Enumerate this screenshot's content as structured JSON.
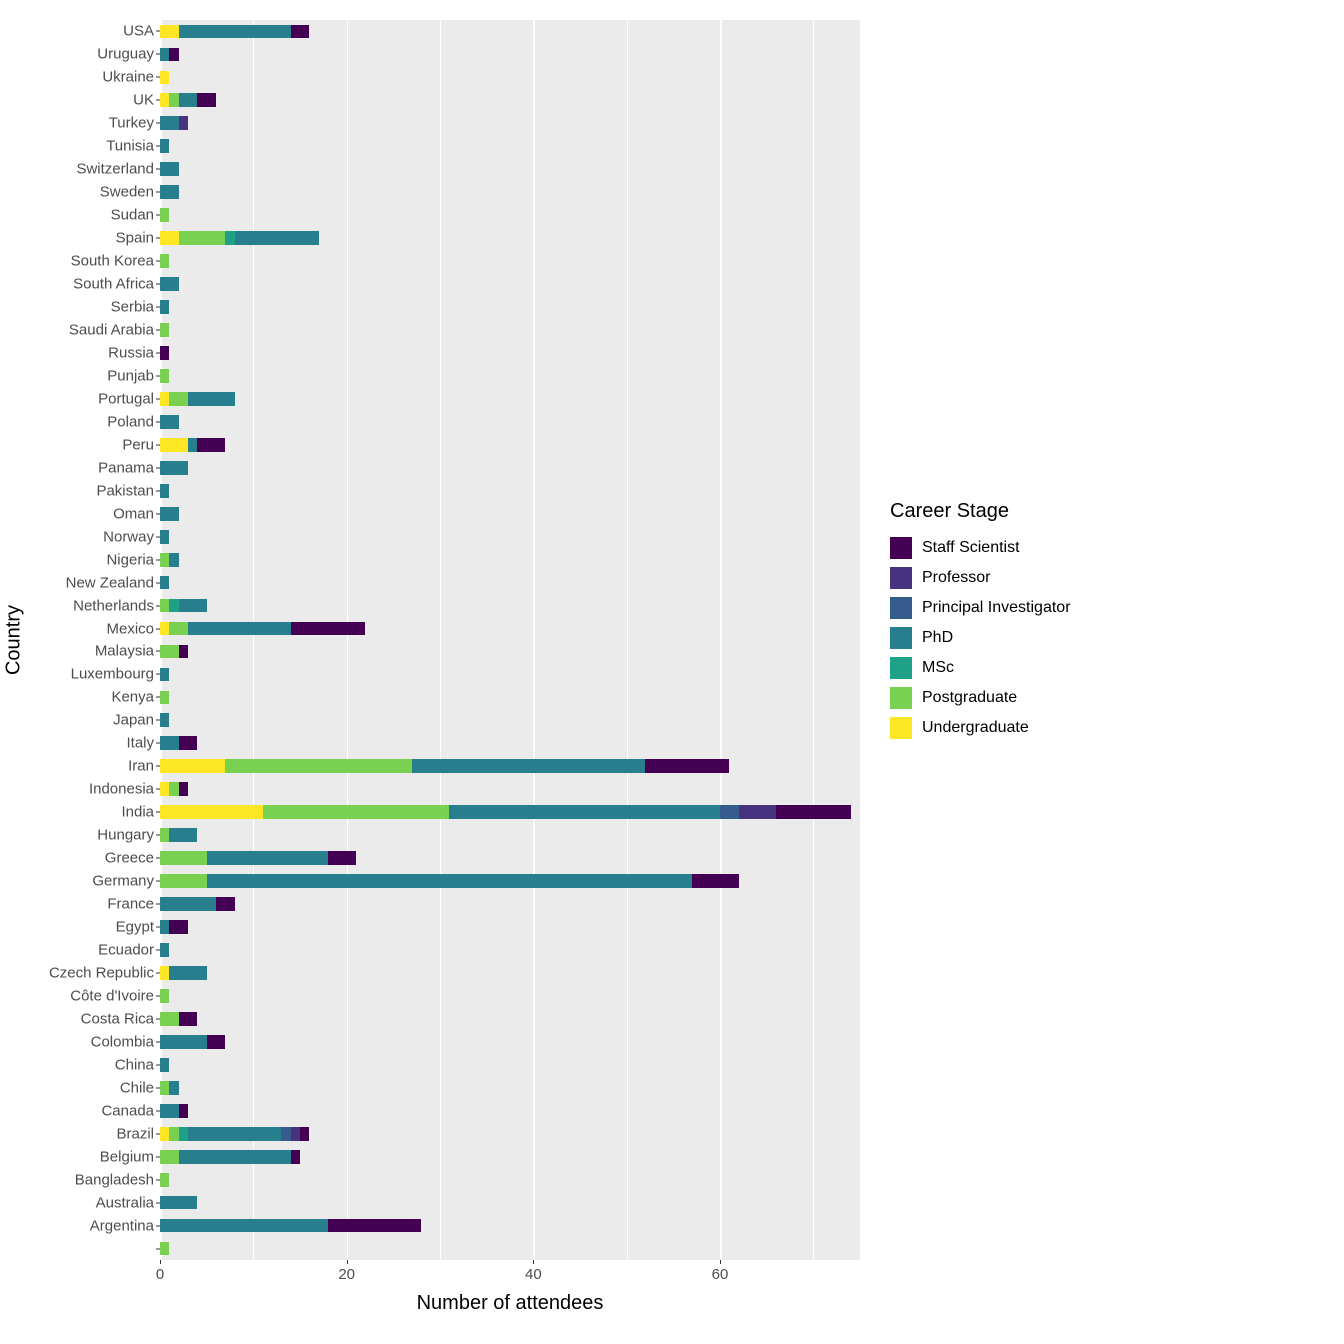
{
  "chart": {
    "type": "stacked-bar-horizontal",
    "background_color": "#ffffff",
    "panel_background": "#ebebeb",
    "gridline_color": "#ffffff",
    "xlabel": "Number of attendees",
    "ylabel": "Country",
    "label_fontsize": 20,
    "tick_fontsize": 15,
    "xlim": [
      0,
      75
    ],
    "xticks": [
      0,
      20,
      40,
      60
    ],
    "bar_fill_ratio": 0.6,
    "legend": {
      "title": "Career Stage",
      "title_fontsize": 20,
      "label_fontsize": 16,
      "items": [
        {
          "key": "staff_scientist",
          "label": "Staff Scientist",
          "color": "#440154"
        },
        {
          "key": "professor",
          "label": "Professor",
          "color": "#46327e"
        },
        {
          "key": "pi",
          "label": "Principal Investigator",
          "color": "#365c8d"
        },
        {
          "key": "phd",
          "label": "PhD",
          "color": "#277f8e"
        },
        {
          "key": "msc",
          "label": "MSc",
          "color": "#1fa187"
        },
        {
          "key": "postgrad",
          "label": "Postgraduate",
          "color": "#7ad151"
        },
        {
          "key": "undergrad",
          "label": "Undergraduate",
          "color": "#fde725"
        }
      ]
    },
    "stack_order": [
      "undergrad",
      "postgrad",
      "msc",
      "phd",
      "pi",
      "professor",
      "staff_scientist"
    ],
    "countries": [
      "USA",
      "Uruguay",
      "Ukraine",
      "UK",
      "Turkey",
      "Tunisia",
      "Switzerland",
      "Sweden",
      "Sudan",
      "Spain",
      "South Korea",
      "South Africa",
      "Serbia",
      "Saudi Arabia",
      "Russia",
      "Punjab",
      "Portugal",
      "Poland",
      "Peru",
      "Panama",
      "Pakistan",
      "Oman",
      "Norway",
      "Nigeria",
      "New Zealand",
      "Netherlands",
      "Mexico",
      "Malaysia",
      "Luxembourg",
      "Kenya",
      "Japan",
      "Italy",
      "Iran",
      "Indonesia",
      "India",
      "Hungary",
      "Greece",
      "Germany",
      "France",
      "Egypt",
      "Ecuador",
      "Czech Republic",
      "Côte d'Ivoire",
      "Costa Rica",
      "Colombia",
      "China",
      "Chile",
      "Canada",
      "Brazil",
      "Belgium",
      "Bangladesh",
      "Australia",
      "Argentina",
      ""
    ],
    "data": {
      "USA": {
        "undergrad": 2,
        "postgrad": 0,
        "msc": 0,
        "phd": 12,
        "pi": 0,
        "professor": 0,
        "staff_scientist": 2
      },
      "Uruguay": {
        "undergrad": 0,
        "postgrad": 0,
        "msc": 0,
        "phd": 1,
        "pi": 0,
        "professor": 0,
        "staff_scientist": 1
      },
      "Ukraine": {
        "undergrad": 1,
        "postgrad": 0,
        "msc": 0,
        "phd": 0,
        "pi": 0,
        "professor": 0,
        "staff_scientist": 0
      },
      "UK": {
        "undergrad": 1,
        "postgrad": 1,
        "msc": 0,
        "phd": 2,
        "pi": 0,
        "professor": 0,
        "staff_scientist": 2
      },
      "Turkey": {
        "undergrad": 0,
        "postgrad": 0,
        "msc": 0,
        "phd": 2,
        "pi": 0,
        "professor": 1,
        "staff_scientist": 0
      },
      "Tunisia": {
        "undergrad": 0,
        "postgrad": 0,
        "msc": 0,
        "phd": 1,
        "pi": 0,
        "professor": 0,
        "staff_scientist": 0
      },
      "Switzerland": {
        "undergrad": 0,
        "postgrad": 0,
        "msc": 0,
        "phd": 2,
        "pi": 0,
        "professor": 0,
        "staff_scientist": 0
      },
      "Sweden": {
        "undergrad": 0,
        "postgrad": 0,
        "msc": 0,
        "phd": 2,
        "pi": 0,
        "professor": 0,
        "staff_scientist": 0
      },
      "Sudan": {
        "undergrad": 0,
        "postgrad": 1,
        "msc": 0,
        "phd": 0,
        "pi": 0,
        "professor": 0,
        "staff_scientist": 0
      },
      "Spain": {
        "undergrad": 2,
        "postgrad": 5,
        "msc": 1,
        "phd": 9,
        "pi": 0,
        "professor": 0,
        "staff_scientist": 0
      },
      "South Korea": {
        "undergrad": 0,
        "postgrad": 1,
        "msc": 0,
        "phd": 0,
        "pi": 0,
        "professor": 0,
        "staff_scientist": 0
      },
      "South Africa": {
        "undergrad": 0,
        "postgrad": 0,
        "msc": 0,
        "phd": 2,
        "pi": 0,
        "professor": 0,
        "staff_scientist": 0
      },
      "Serbia": {
        "undergrad": 0,
        "postgrad": 0,
        "msc": 0,
        "phd": 1,
        "pi": 0,
        "professor": 0,
        "staff_scientist": 0
      },
      "Saudi Arabia": {
        "undergrad": 0,
        "postgrad": 1,
        "msc": 0,
        "phd": 0,
        "pi": 0,
        "professor": 0,
        "staff_scientist": 0
      },
      "Russia": {
        "undergrad": 0,
        "postgrad": 0,
        "msc": 0,
        "phd": 0,
        "pi": 0,
        "professor": 0,
        "staff_scientist": 1
      },
      "Punjab": {
        "undergrad": 0,
        "postgrad": 1,
        "msc": 0,
        "phd": 0,
        "pi": 0,
        "professor": 0,
        "staff_scientist": 0
      },
      "Portugal": {
        "undergrad": 1,
        "postgrad": 2,
        "msc": 0,
        "phd": 5,
        "pi": 0,
        "professor": 0,
        "staff_scientist": 0
      },
      "Poland": {
        "undergrad": 0,
        "postgrad": 0,
        "msc": 0,
        "phd": 2,
        "pi": 0,
        "professor": 0,
        "staff_scientist": 0
      },
      "Peru": {
        "undergrad": 3,
        "postgrad": 0,
        "msc": 0,
        "phd": 1,
        "pi": 0,
        "professor": 0,
        "staff_scientist": 3
      },
      "Panama": {
        "undergrad": 0,
        "postgrad": 0,
        "msc": 0,
        "phd": 3,
        "pi": 0,
        "professor": 0,
        "staff_scientist": 0
      },
      "Pakistan": {
        "undergrad": 0,
        "postgrad": 0,
        "msc": 0,
        "phd": 1,
        "pi": 0,
        "professor": 0,
        "staff_scientist": 0
      },
      "Oman": {
        "undergrad": 0,
        "postgrad": 0,
        "msc": 0,
        "phd": 2,
        "pi": 0,
        "professor": 0,
        "staff_scientist": 0
      },
      "Norway": {
        "undergrad": 0,
        "postgrad": 0,
        "msc": 0,
        "phd": 1,
        "pi": 0,
        "professor": 0,
        "staff_scientist": 0
      },
      "Nigeria": {
        "undergrad": 0,
        "postgrad": 1,
        "msc": 0,
        "phd": 1,
        "pi": 0,
        "professor": 0,
        "staff_scientist": 0
      },
      "New Zealand": {
        "undergrad": 0,
        "postgrad": 0,
        "msc": 0,
        "phd": 1,
        "pi": 0,
        "professor": 0,
        "staff_scientist": 0
      },
      "Netherlands": {
        "undergrad": 0,
        "postgrad": 1,
        "msc": 1,
        "phd": 3,
        "pi": 0,
        "professor": 0,
        "staff_scientist": 0
      },
      "Mexico": {
        "undergrad": 1,
        "postgrad": 2,
        "msc": 0,
        "phd": 11,
        "pi": 0,
        "professor": 0,
        "staff_scientist": 8
      },
      "Malaysia": {
        "undergrad": 0,
        "postgrad": 2,
        "msc": 0,
        "phd": 0,
        "pi": 0,
        "professor": 0,
        "staff_scientist": 1
      },
      "Luxembourg": {
        "undergrad": 0,
        "postgrad": 0,
        "msc": 0,
        "phd": 1,
        "pi": 0,
        "professor": 0,
        "staff_scientist": 0
      },
      "Kenya": {
        "undergrad": 0,
        "postgrad": 1,
        "msc": 0,
        "phd": 0,
        "pi": 0,
        "professor": 0,
        "staff_scientist": 0
      },
      "Japan": {
        "undergrad": 0,
        "postgrad": 0,
        "msc": 0,
        "phd": 1,
        "pi": 0,
        "professor": 0,
        "staff_scientist": 0
      },
      "Italy": {
        "undergrad": 0,
        "postgrad": 0,
        "msc": 0,
        "phd": 2,
        "pi": 0,
        "professor": 0,
        "staff_scientist": 2
      },
      "Iran": {
        "undergrad": 7,
        "postgrad": 20,
        "msc": 0,
        "phd": 25,
        "pi": 0,
        "professor": 0,
        "staff_scientist": 9
      },
      "Indonesia": {
        "undergrad": 1,
        "postgrad": 1,
        "msc": 0,
        "phd": 0,
        "pi": 0,
        "professor": 0,
        "staff_scientist": 1
      },
      "India": {
        "undergrad": 11,
        "postgrad": 20,
        "msc": 0,
        "phd": 29,
        "pi": 2,
        "professor": 4,
        "staff_scientist": 8
      },
      "Hungary": {
        "undergrad": 0,
        "postgrad": 1,
        "msc": 0,
        "phd": 3,
        "pi": 0,
        "professor": 0,
        "staff_scientist": 0
      },
      "Greece": {
        "undergrad": 0,
        "postgrad": 5,
        "msc": 0,
        "phd": 13,
        "pi": 0,
        "professor": 0,
        "staff_scientist": 3
      },
      "Germany": {
        "undergrad": 0,
        "postgrad": 5,
        "msc": 0,
        "phd": 52,
        "pi": 0,
        "professor": 0,
        "staff_scientist": 5
      },
      "France": {
        "undergrad": 0,
        "postgrad": 0,
        "msc": 0,
        "phd": 6,
        "pi": 0,
        "professor": 0,
        "staff_scientist": 2
      },
      "Egypt": {
        "undergrad": 0,
        "postgrad": 0,
        "msc": 0,
        "phd": 1,
        "pi": 0,
        "professor": 0,
        "staff_scientist": 2
      },
      "Ecuador": {
        "undergrad": 0,
        "postgrad": 0,
        "msc": 0,
        "phd": 1,
        "pi": 0,
        "professor": 0,
        "staff_scientist": 0
      },
      "Czech Republic": {
        "undergrad": 1,
        "postgrad": 0,
        "msc": 0,
        "phd": 4,
        "pi": 0,
        "professor": 0,
        "staff_scientist": 0
      },
      "Côte d'Ivoire": {
        "undergrad": 0,
        "postgrad": 1,
        "msc": 0,
        "phd": 0,
        "pi": 0,
        "professor": 0,
        "staff_scientist": 0
      },
      "Costa Rica": {
        "undergrad": 0,
        "postgrad": 2,
        "msc": 0,
        "phd": 0,
        "pi": 0,
        "professor": 0,
        "staff_scientist": 2
      },
      "Colombia": {
        "undergrad": 0,
        "postgrad": 0,
        "msc": 0,
        "phd": 5,
        "pi": 0,
        "professor": 0,
        "staff_scientist": 2
      },
      "China": {
        "undergrad": 0,
        "postgrad": 0,
        "msc": 0,
        "phd": 1,
        "pi": 0,
        "professor": 0,
        "staff_scientist": 0
      },
      "Chile": {
        "undergrad": 0,
        "postgrad": 1,
        "msc": 0,
        "phd": 1,
        "pi": 0,
        "professor": 0,
        "staff_scientist": 0
      },
      "Canada": {
        "undergrad": 0,
        "postgrad": 0,
        "msc": 0,
        "phd": 2,
        "pi": 0,
        "professor": 0,
        "staff_scientist": 1
      },
      "Brazil": {
        "undergrad": 1,
        "postgrad": 1,
        "msc": 1,
        "phd": 10,
        "pi": 1,
        "professor": 1,
        "staff_scientist": 1
      },
      "Belgium": {
        "undergrad": 0,
        "postgrad": 2,
        "msc": 0,
        "phd": 12,
        "pi": 0,
        "professor": 0,
        "staff_scientist": 1
      },
      "Bangladesh": {
        "undergrad": 0,
        "postgrad": 1,
        "msc": 0,
        "phd": 0,
        "pi": 0,
        "professor": 0,
        "staff_scientist": 0
      },
      "Australia": {
        "undergrad": 0,
        "postgrad": 0,
        "msc": 0,
        "phd": 4,
        "pi": 0,
        "professor": 0,
        "staff_scientist": 0
      },
      "Argentina": {
        "undergrad": 0,
        "postgrad": 0,
        "msc": 0,
        "phd": 18,
        "pi": 0,
        "professor": 0,
        "staff_scientist": 10
      },
      "": {
        "undergrad": 0,
        "postgrad": 1,
        "msc": 0,
        "phd": 0,
        "pi": 0,
        "professor": 0,
        "staff_scientist": 0
      }
    }
  }
}
